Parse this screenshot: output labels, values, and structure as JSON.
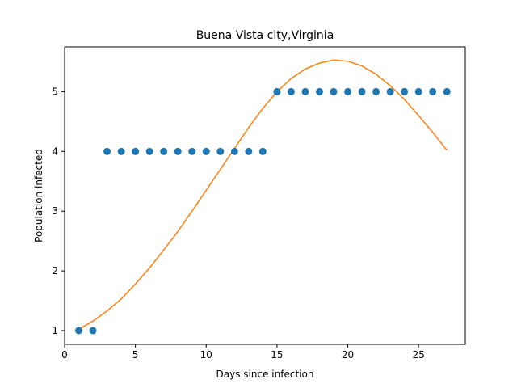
{
  "chart_data": {
    "type": "scatter",
    "title": "Buena Vista city,Virginia",
    "xlabel": "Days since infection",
    "ylabel": "Population infected",
    "xlim": [
      0,
      28.3
    ],
    "ylim": [
      0.77,
      5.75
    ],
    "xticks": [
      0,
      5,
      10,
      15,
      20,
      25
    ],
    "yticks": [
      1,
      2,
      3,
      4,
      5
    ],
    "grid": false,
    "legend": "none",
    "series": [
      {
        "kind": "scatter",
        "color": "#1f77b4",
        "x": [
          1,
          2,
          3,
          4,
          5,
          6,
          7,
          8,
          9,
          10,
          11,
          12,
          13,
          14,
          15,
          16,
          17,
          18,
          19,
          20,
          21,
          22,
          23,
          24,
          25,
          26,
          27
        ],
        "y": [
          1,
          1,
          4,
          4,
          4,
          4,
          4,
          4,
          4,
          4,
          4,
          4,
          4,
          4,
          5,
          5,
          5,
          5,
          5,
          5,
          5,
          5,
          5,
          5,
          5,
          5,
          5
        ]
      },
      {
        "kind": "line",
        "color": "#ff7f0e",
        "x": [
          1,
          2,
          3,
          4,
          5,
          6,
          7,
          8,
          9,
          10,
          11,
          12,
          13,
          14,
          15,
          16,
          17,
          18,
          19,
          20,
          21,
          22,
          23,
          24,
          25,
          26,
          27
        ],
        "y": [
          1.02,
          1.16,
          1.33,
          1.53,
          1.78,
          2.05,
          2.35,
          2.66,
          3.0,
          3.35,
          3.7,
          4.05,
          4.4,
          4.72,
          5.0,
          5.22,
          5.38,
          5.48,
          5.53,
          5.51,
          5.43,
          5.29,
          5.1,
          4.87,
          4.6,
          4.32,
          4.02
        ]
      }
    ]
  }
}
